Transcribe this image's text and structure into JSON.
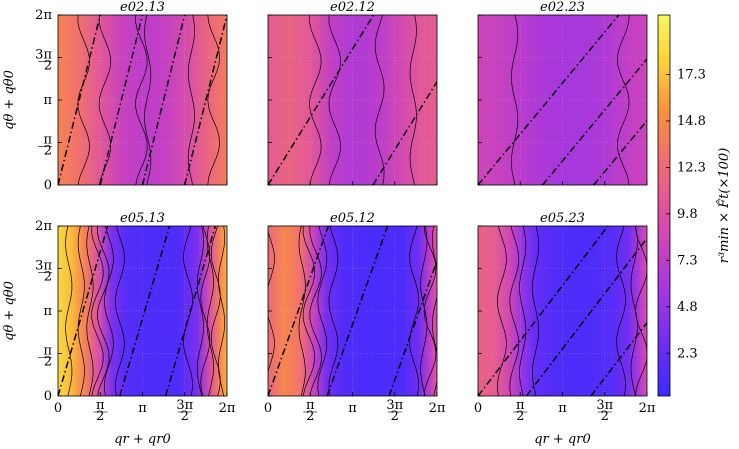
{
  "figure": {
    "ylabel": "qθ + qθ0",
    "xlabel": "qr + qr0",
    "colorbar_label": "r³min × F̂t(×100)",
    "x_tick_labels": [
      "0",
      "π/2",
      "π",
      "3π/2",
      "2π"
    ],
    "y_tick_labels": [
      "0",
      "π/2",
      "π",
      "3π/2",
      "2π"
    ],
    "colorbar_ticks": [
      "2.3",
      "4.8",
      "7.3",
      "9.8",
      "12.3",
      "14.8",
      "17.3"
    ],
    "colormap_stops": [
      "#3a2cff",
      "#6b2df2",
      "#9b35e6",
      "#c43fc4",
      "#e0569b",
      "#f0706d",
      "#f9933e",
      "#fbd13a",
      "#f8f85c"
    ]
  },
  "chart_data": [
    {
      "type": "heatmap",
      "title": "e02.13",
      "xlim": [
        0,
        6.2832
      ],
      "ylim": [
        0,
        6.2832
      ],
      "dash_lines": [
        {
          "x_at_y0": 0.0,
          "slope": 4.0
        },
        {
          "x_at_y0": 1.5708,
          "slope": 4.0
        },
        {
          "x_at_y0": 3.1416,
          "slope": 4.0
        },
        {
          "x_at_y0": 4.7124,
          "slope": 4.0
        }
      ],
      "profile": [
        [
          0,
          14.2
        ],
        [
          0.8,
          12.8
        ],
        [
          1.6,
          10.2
        ],
        [
          2.4,
          8.0
        ],
        [
          3.2,
          7.2
        ],
        [
          4.0,
          7.8
        ],
        [
          4.8,
          9.3
        ],
        [
          5.6,
          11.8
        ],
        [
          6.2832,
          13.6
        ]
      ]
    },
    {
      "type": "heatmap",
      "title": "e02.12",
      "xlim": [
        0,
        6.2832
      ],
      "ylim": [
        0,
        6.2832
      ],
      "dash_lines": [
        {
          "x_at_y0": 0.0,
          "slope": 1.6
        },
        {
          "x_at_y0": 3.9,
          "slope": 1.6
        }
      ],
      "profile": [
        [
          0,
          10.8
        ],
        [
          0.8,
          11.6
        ],
        [
          1.6,
          10.4
        ],
        [
          2.4,
          7.4
        ],
        [
          3.2,
          6.4
        ],
        [
          4.0,
          7.0
        ],
        [
          4.8,
          8.6
        ],
        [
          5.6,
          10.2
        ],
        [
          6.2832,
          11.0
        ]
      ]
    },
    {
      "type": "heatmap",
      "title": "e02.23",
      "xlim": [
        0,
        6.2832
      ],
      "ylim": [
        0,
        6.2832
      ],
      "dash_lines": [
        {
          "x_at_y0": 0.0,
          "slope": 1.2
        },
        {
          "x_at_y0": 2.4,
          "slope": 1.2
        },
        {
          "x_at_y0": 4.3,
          "slope": 1.2
        }
      ],
      "profile": [
        [
          0,
          8.4
        ],
        [
          0.8,
          8.0
        ],
        [
          1.6,
          7.0
        ],
        [
          2.4,
          6.2
        ],
        [
          3.2,
          5.8
        ],
        [
          4.0,
          5.9
        ],
        [
          4.8,
          6.4
        ],
        [
          5.6,
          7.6
        ],
        [
          6.2832,
          8.3
        ]
      ]
    },
    {
      "type": "heatmap",
      "title": "e05.13",
      "xlim": [
        0,
        6.2832
      ],
      "ylim": [
        0,
        6.2832
      ],
      "dash_lines": [
        {
          "x_at_y0": 0.0,
          "slope": 3.4
        },
        {
          "x_at_y0": 2.3,
          "slope": 3.4
        },
        {
          "x_at_y0": 4.0,
          "slope": 3.4
        }
      ],
      "profile": [
        [
          0,
          18.5
        ],
        [
          0.5,
          17.0
        ],
        [
          1.0,
          14.0
        ],
        [
          1.5,
          9.5
        ],
        [
          2.0,
          3.5
        ],
        [
          2.5,
          1.5
        ],
        [
          3.5,
          1.0
        ],
        [
          4.5,
          1.2
        ],
        [
          5.2,
          3.5
        ],
        [
          5.6,
          9.0
        ],
        [
          6.0,
          14.0
        ],
        [
          6.2832,
          16.8
        ]
      ]
    },
    {
      "type": "heatmap",
      "title": "e05.12",
      "xlim": [
        0,
        6.2832
      ],
      "ylim": [
        0,
        6.2832
      ],
      "dash_lines": [
        {
          "x_at_y0": 0.0,
          "slope": 2.8
        },
        {
          "x_at_y0": 2.2,
          "slope": 2.8
        },
        {
          "x_at_y0": 4.5,
          "slope": 2.8
        }
      ],
      "profile": [
        [
          0,
          12.0
        ],
        [
          0.6,
          14.5
        ],
        [
          1.2,
          13.0
        ],
        [
          1.7,
          8.0
        ],
        [
          2.2,
          3.0
        ],
        [
          2.8,
          1.2
        ],
        [
          4.0,
          0.8
        ],
        [
          5.0,
          1.0
        ],
        [
          5.6,
          2.8
        ],
        [
          6.0,
          7.0
        ],
        [
          6.2832,
          10.5
        ]
      ]
    },
    {
      "type": "heatmap",
      "title": "e05.23",
      "xlim": [
        0,
        6.2832
      ],
      "ylim": [
        0,
        6.2832
      ],
      "dash_lines": [
        {
          "x_at_y0": 0.0,
          "slope": 1.3
        },
        {
          "x_at_y0": 1.8,
          "slope": 1.3
        },
        {
          "x_at_y0": 4.2,
          "slope": 1.3
        }
      ],
      "profile": [
        [
          0,
          11.5
        ],
        [
          0.6,
          11.0
        ],
        [
          1.2,
          8.5
        ],
        [
          1.7,
          4.5
        ],
        [
          2.2,
          2.0
        ],
        [
          3.0,
          1.2
        ],
        [
          4.0,
          1.0
        ],
        [
          5.0,
          1.5
        ],
        [
          5.6,
          3.0
        ],
        [
          6.0,
          6.5
        ],
        [
          6.2832,
          9.5
        ]
      ]
    }
  ]
}
